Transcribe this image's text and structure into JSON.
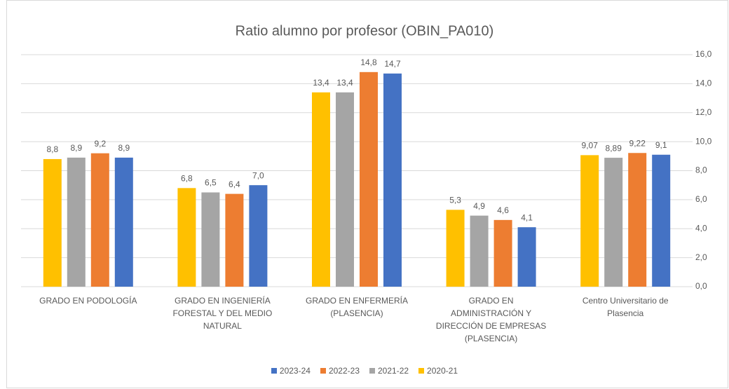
{
  "chart_data": {
    "type": "bar",
    "title": "Ratio alumno por profesor (OBIN_PA010)",
    "categories": [
      "GRADO EN PODOLOGÍA",
      "GRADO EN INGENIERÍA FORESTAL Y DEL MEDIO NATURAL",
      "GRADO EN ENFERMERÍA (PLASENCIA)",
      "GRADO EN ADMINISTRACIÓN Y DIRECCIÓN DE EMPRESAS (PLASENCIA)",
      "Centro Universitario de Plasencia"
    ],
    "series": [
      {
        "name": "2023-24",
        "color": "#4472C4",
        "values": [
          8.9,
          7.0,
          14.7,
          4.1,
          9.1
        ],
        "value_labels": [
          "8,9",
          "7,0",
          "14,7",
          "4,1",
          "9,1"
        ]
      },
      {
        "name": "2022-23",
        "color": "#ED7D31",
        "values": [
          9.2,
          6.4,
          14.8,
          4.6,
          9.22
        ],
        "value_labels": [
          "9,2",
          "6,4",
          "14,8",
          "4,6",
          "9,22"
        ]
      },
      {
        "name": "2021-22",
        "color": "#A5A5A5",
        "values": [
          8.9,
          6.5,
          13.4,
          4.9,
          8.89
        ],
        "value_labels": [
          "8,9",
          "6,5",
          "13,4",
          "4,9",
          "8,89"
        ]
      },
      {
        "name": "2020-21",
        "color": "#FFC000",
        "values": [
          8.8,
          6.8,
          13.4,
          5.3,
          9.07
        ],
        "value_labels": [
          "8,8",
          "6,8",
          "13,4",
          "5,3",
          "9,07"
        ]
      }
    ],
    "ylim": [
      0,
      16
    ],
    "yticks": [
      {
        "value": 0,
        "label": "0,0"
      },
      {
        "value": 2,
        "label": "2,0"
      },
      {
        "value": 4,
        "label": "4,0"
      },
      {
        "value": 6,
        "label": "6,0"
      },
      {
        "value": 8,
        "label": "8,0"
      },
      {
        "value": 10,
        "label": "10,0"
      },
      {
        "value": 12,
        "label": "12,0"
      },
      {
        "value": 14,
        "label": "14,0"
      },
      {
        "value": 16,
        "label": "16,0"
      }
    ],
    "grid": true
  }
}
